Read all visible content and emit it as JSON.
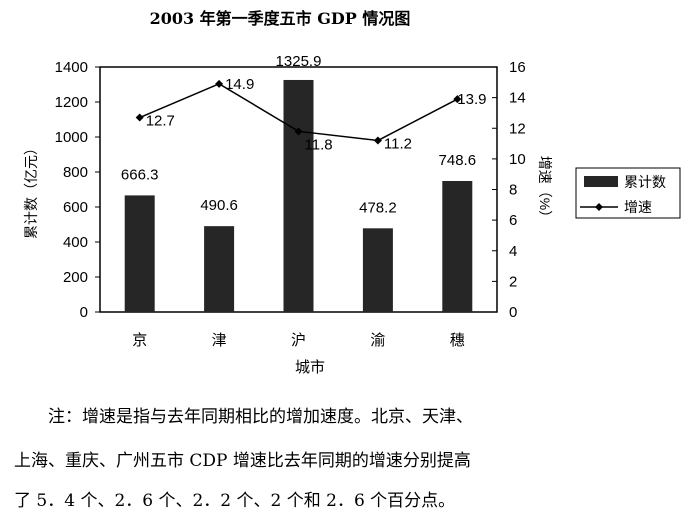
{
  "chart_data": {
    "type": "bar",
    "title": "2003 年第一季度五市 GDP 情况图",
    "categories": [
      "京",
      "津",
      "沪",
      "渝",
      "穗"
    ],
    "series": [
      {
        "name": "累计数",
        "type": "bar",
        "axis": "left",
        "values": [
          666.3,
          490.6,
          1325.9,
          478.2,
          748.6
        ]
      },
      {
        "name": "增速",
        "type": "line",
        "axis": "right",
        "values": [
          12.7,
          14.9,
          11.8,
          11.2,
          13.9
        ]
      }
    ],
    "xlabel": "城市",
    "ylabel": "累计数（亿元）",
    "y2label": "增速（%）",
    "ylim": [
      0,
      1400
    ],
    "y2lim": [
      0,
      16
    ],
    "yticks": [
      "0",
      "200",
      "400",
      "600",
      "800",
      "1000",
      "1200",
      "1400"
    ],
    "y2ticks": [
      "0",
      "2",
      "4",
      "6",
      "8",
      "10",
      "12",
      "14",
      "16"
    ],
    "legend_position": "right",
    "colors": {
      "bar": "#262626",
      "line": "#000000"
    }
  },
  "note": {
    "line1": "注：增速是指与去年同期相比的增加速度。北京、天津、",
    "line2": "上海、重庆、广州五市 CDP 增速比去年同期的增速分别提高",
    "line3": "了 5．4 个、2．6 个、2．2 个、2 个和 2．6 个百分点。"
  }
}
